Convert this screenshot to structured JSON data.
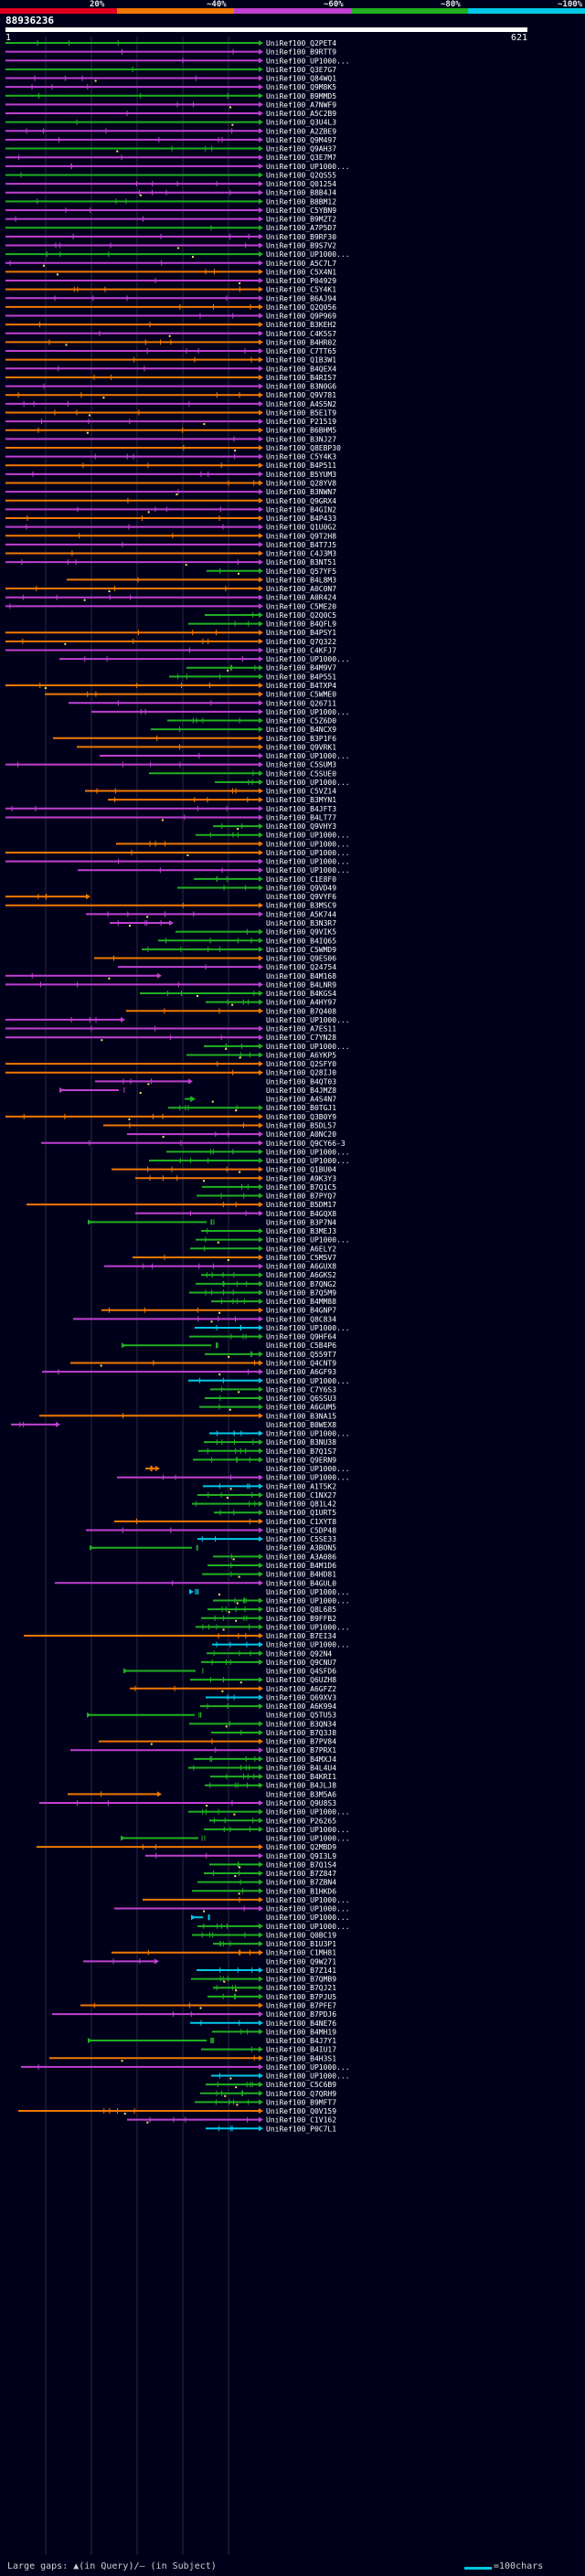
{
  "scale_legend": {
    "segments": [
      {
        "label": "20%",
        "color": "#e0001e"
      },
      {
        "label": "~40%",
        "color": "#f07800"
      },
      {
        "label": "~60%",
        "color": "#c040d0"
      },
      {
        "label": "~80%",
        "color": "#20b020"
      },
      {
        "label": "~100%",
        "color": "#00c8e6"
      }
    ]
  },
  "query": {
    "name": "88936236",
    "start": "1",
    "end": "621"
  },
  "hit_ids": [
    "UniRef100_Q2PET4",
    "UniRef100_B9RTT9",
    "UniRef100_UP1000...",
    "UniRef100_Q3E7G7",
    "UniRef100_Q84WQ1",
    "UniRef100_Q9M8K5",
    "UniRef100_B9MMD5",
    "UniRef100_A7NWF9",
    "UniRef100_A5C2B9",
    "UniRef100_Q3U4L3",
    "UniRef100_A2ZBE9",
    "UniRef100_Q9M497",
    "UniRef100_Q9AH37",
    "UniRef100_Q3E7M7",
    "UniRef100_UP1000...",
    "UniRef100_Q2QS55",
    "UniRef100_Q01254",
    "UniRef100_B8B4J4",
    "UniRef100_B8BM12",
    "UniRef100_C5YBN9",
    "UniRef100_B9MZT2",
    "UniRef100_A7P5D7",
    "UniRef100_B9RF30",
    "UniRef100_B9S7V2",
    "UniRef100_UP1000...",
    "UniRef100_A5C7L7",
    "UniRef100_C5X4N1",
    "UniRef100_P04929",
    "UniRef100_C5Y4K1",
    "UniRef100_B6AJ94",
    "UniRef100_Q2Q056",
    "UniRef100_Q9P969",
    "UniRef100_B3KEH2",
    "UniRef100_C4K5S7",
    "UniRef100_B4HR02",
    "UniRef100_C7TT65",
    "UniRef100_Q1B3W1",
    "UniRef100_B4QEX4",
    "UniRef100_B4RI57",
    "UniRef100_B3N0G6",
    "UniRef100_Q9V781",
    "UniRef100_A4S5N2",
    "UniRef100_B5E1T9",
    "UniRef100_P21519",
    "UniRef100_B6BHM5",
    "UniRef100_B3NJ27",
    "UniRef100_Q8EBP30",
    "UniRef100_C5Y4K3",
    "UniRef100_B4P511",
    "UniRef100_B5YUM3",
    "UniRef100_Q28YV8",
    "UniRef100_B3NWN7",
    "UniRef100_Q9GRX4",
    "UniRef100_B4GIN2",
    "UniRef100_B4P433",
    "UniRef100_Q1U0G2",
    "UniRef100_Q9T2H8",
    "UniRef100_B4T7J5",
    "UniRef100_C4J3M3",
    "UniRef100_B3NT51",
    "UniRef100_Q57YF5",
    "UniRef100_B4L8M3",
    "UniRef100_A0C0N7",
    "UniRef100_A0R424",
    "UniRef100_C5ME20",
    "UniRef100_Q2Q0C5",
    "UniRef100_B4QFL9",
    "UniRef100_B4PSY1",
    "UniRef100_Q7Q322",
    "UniRef100_C4KFJ7",
    "UniRef100_UP1000...",
    "UniRef100_B4M9V7",
    "UniRef100_B4P551",
    "UniRef100_B4TXP4",
    "UniRef100_C5WME0",
    "UniRef100_Q26711",
    "UniRef100_UP1000...",
    "UniRef100_C5Z6D0",
    "UniRef100_B4NCX9",
    "UniRef100_B3P1F6",
    "UniRef100_Q9VRK1",
    "UniRef100_UP1000...",
    "UniRef100_C5SUM3",
    "UniRef100_C5SUE0",
    "UniRef100_UP1000...",
    "UniRef100_C5VZ14",
    "UniRef100_B3MYN1",
    "UniRef100_B4JFT3",
    "UniRef100_B4LT77",
    "UniRef100_Q9VHY3",
    "UniRef100_UP1000...",
    "UniRef100_UP1000...",
    "UniRef100_UP1000...",
    "UniRef100_UP1000...",
    "UniRef100_UP1000...",
    "UniRef100_C1E8F0",
    "UniRef100_Q9VD49",
    "UniRef100_Q9VYF6",
    "UniRef100_B3MSC9",
    "UniRef100_A5K744",
    "UniRef100_B3N3R7",
    "UniRef100_Q9VIK5",
    "UniRef100_B4IQ65",
    "UniRef100_C5WMD9",
    "UniRef100_Q9ES06",
    "UniRef100_Q24754",
    "UniRef100_B4M168",
    "UniRef100_B4LNR9",
    "UniRef100_B4KGS4",
    "UniRef100_A4HY97",
    "UniRef100_B7Q408",
    "UniRef100_UP1000...",
    "UniRef100_A7ES11",
    "UniRef100_C7YN28",
    "UniRef100_UP1000...",
    "UniRef100_A6YKP5",
    "UniRef100_Q2SFY0",
    "UniRef100_Q28IJ0",
    "UniRef100_B4QT03",
    "UniRef100_B4JMZ8",
    "UniRef100_A4S4N7",
    "UniRef100_B0TGJ1",
    "UniRef100_Q3B0Y9",
    "UniRef100_B5DL57",
    "UniRef100_A0NC20",
    "UniRef100_Q9CY66-3",
    "UniRef100_UP1000...",
    "UniRef100_UP1000...",
    "UniRef100_Q1BU04",
    "UniRef100_A9K3Y3",
    "UniRef100_B7Q1C5",
    "UniRef100_B7PYQ7",
    "UniRef100_B5DM17",
    "UniRef100_B4GQX8",
    "UniRef100_B3P7N4",
    "UniRef100_B3MEJ3",
    "UniRef100_UP1000...",
    "UniRef100_A6ELY2",
    "UniRef100_C5M5V7",
    "UniRef100_A6GUX8",
    "UniRef100_A6GKS2",
    "UniRef100_B7QNG2",
    "UniRef100_B7Q5M9",
    "UniRef100_B4MM88",
    "UniRef100_B4GNP7",
    "UniRef100_Q8C834",
    "UniRef100_UP1000...",
    "UniRef100_Q9HF64",
    "UniRef100_C5B4P6",
    "UniRef100_Q559T7",
    "UniRef100_Q4CNT9",
    "UniRef100_A6GF93",
    "UniRef100_UP1000...",
    "UniRef100_C7Y6S3",
    "UniRef100_Q6SSU3",
    "UniRef100_A6GUM5",
    "UniRef100_B3NA15",
    "UniRef100_B0WEX8",
    "UniRef100_UP1000...",
    "UniRef100_B3NU38",
    "UniRef100_B7Q1S7",
    "UniRef100_Q9ERN9",
    "UniRef100_UP1000...",
    "UniRef100_UP1000...",
    "UniRef100_A1T5K2",
    "UniRef100_C1NX27",
    "UniRef100_Q81L42",
    "UniRef100_Q1URT5",
    "UniRef100_C1XYT8",
    "UniRef100_C5DP48",
    "UniRef100_C5SE33",
    "UniRef100_A3BON5",
    "UniRef100_A3A086",
    "UniRef100_B4M1D6",
    "UniRef100_B4HD81",
    "UniRef100_B4GUL0",
    "UniRef100_UP1000...",
    "UniRef100_UP1000...",
    "UniRef100_Q8L685",
    "UniRef100_B9FFB2",
    "UniRef100_UP1000...",
    "UniRef100_B7EI34",
    "UniRef100_UP1000...",
    "UniRef100_Q92N4",
    "UniRef100_Q9CNU7",
    "UniRef100_Q4SFD6",
    "UniRef100_Q6UZH8",
    "UniRef100_A6GFZ2",
    "UniRef100_Q69XV3",
    "UniRef100_A6K994",
    "UniRef100_Q5TU53",
    "UniRef100_B3QN34",
    "UniRef100_B7Q3J8",
    "UniRef100_B7PV84",
    "UniRef100_B7PRX1",
    "UniRef100_B4MXJ4",
    "UniRef100_B4L4U4",
    "UniRef100_B4KRI1",
    "UniRef100_B4JLJ8",
    "UniRef100_B3M5A6",
    "UniRef100_Q9U8S3",
    "UniRef100_UP1000...",
    "UniRef100_P26265",
    "UniRef100_UP1000...",
    "UniRef100_UP1000...",
    "UniRef100_Q2MBD9",
    "UniRef100_Q9I3L9",
    "UniRef100_B7Q1S4",
    "UniRef100_B7Z847",
    "UniRef100_B7ZBN4",
    "UniRef100_B1HKD6",
    "UniRef100_UP1000...",
    "UniRef100_UP1000...",
    "UniRef100_UP1000...",
    "UniRef100_UP1000...",
    "UniRef100_Q0BC19",
    "UniRef100_B1U3P1",
    "UniRef100_C1MH81",
    "UniRef100_Q9W271",
    "UniRef100_B7Z141",
    "UniRef100_B7QMB9",
    "UniRef100_B7QJ21",
    "UniRef100_B7PJU5",
    "UniRef100_B7PFE7",
    "UniRef100_B7PDJ6",
    "UniRef100_B4NE76",
    "UniRef100_B4MH19",
    "UniRef100_B4J7Y1",
    "UniRef100_B4IU17",
    "UniRef100_B4H3S1",
    "UniRef100_UP1000...",
    "UniRef100_UP1000...",
    "UniRef100_C5C6B9",
    "UniRef100_Q7QRH9",
    "UniRef100_B9MFT7",
    "UniRef100_Q0V159",
    "UniRef100_C1V162",
    "UniRef100_P0C7L1"
  ],
  "hit_colors": {
    "red": "#e0001e",
    "orange": "#f07800",
    "magenta": "#c040d0",
    "green": "#20b020",
    "cyan": "#00c8e6"
  },
  "footer": {
    "legend": "Large gaps: ▲(in Query)/— (in Subject)",
    "scale_label": "=100chars"
  }
}
